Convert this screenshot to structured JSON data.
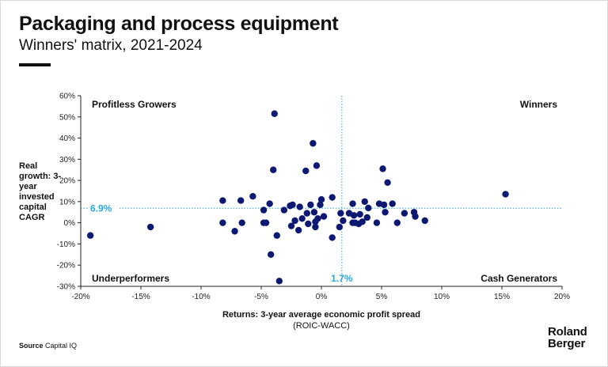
{
  "header": {
    "title": "Packaging and process equipment",
    "subtitle": "Winners' matrix, 2021-2024"
  },
  "footer": {
    "source_label": "Source",
    "source_text": "Capital IQ",
    "logo_line1": "Roland",
    "logo_line2": "Berger"
  },
  "colors": {
    "points": "#0d1873",
    "reference_lines": "#2aa8e0",
    "axis": "#222222"
  },
  "chart_data": {
    "type": "scatter",
    "xlabel": "Returns: 3-year average economic profit spread",
    "xlabel_sub": "(ROIC-WACC)",
    "ylabel": "Real growth: 3-year invested capital CAGR",
    "xlim": [
      -20,
      20
    ],
    "ylim": [
      -30,
      60
    ],
    "x_ticks": [
      -20,
      -15,
      -10,
      -5,
      0,
      5,
      10,
      15,
      20
    ],
    "y_ticks": [
      -30,
      -20,
      -10,
      0,
      10,
      20,
      30,
      40,
      50,
      60
    ],
    "x_tick_labels": [
      "-20%",
      "-15%",
      "-10%",
      "-5%",
      "0%",
      "5%",
      "10%",
      "15%",
      "20%"
    ],
    "y_tick_labels": [
      "-30%",
      "-20%",
      "-10%",
      "0%",
      "10%",
      "20%",
      "30%",
      "40%",
      "50%",
      "60%"
    ],
    "reference_x": 1.7,
    "reference_x_label": "1.7%",
    "reference_y": 6.9,
    "reference_y_label": "6.9%",
    "quadrants": {
      "top_left": "Profitless Growers",
      "top_right": "Winners",
      "bottom_left": "Underperformers",
      "bottom_right": "Cash Generators"
    },
    "grid": false,
    "points": [
      {
        "x": -19.2,
        "y": -6
      },
      {
        "x": -14.2,
        "y": -2
      },
      {
        "x": -8.2,
        "y": 10.5
      },
      {
        "x": -8.2,
        "y": 0
      },
      {
        "x": -7.2,
        "y": -4
      },
      {
        "x": -6.7,
        "y": 10.5
      },
      {
        "x": -6.6,
        "y": 0
      },
      {
        "x": -5.7,
        "y": 12.5
      },
      {
        "x": -4.8,
        "y": 0
      },
      {
        "x": -4.8,
        "y": 6
      },
      {
        "x": -4.6,
        "y": 0
      },
      {
        "x": -4.3,
        "y": 9
      },
      {
        "x": -4.2,
        "y": -15
      },
      {
        "x": -4.0,
        "y": 25
      },
      {
        "x": -3.9,
        "y": 51.5
      },
      {
        "x": -3.7,
        "y": -6
      },
      {
        "x": -3.5,
        "y": -27.5
      },
      {
        "x": -3.1,
        "y": 6
      },
      {
        "x": -2.6,
        "y": 8
      },
      {
        "x": -2.4,
        "y": 8.5
      },
      {
        "x": -2.5,
        "y": -1.5
      },
      {
        "x": -2.2,
        "y": 1
      },
      {
        "x": -1.9,
        "y": -3.5
      },
      {
        "x": -1.8,
        "y": 7.5
      },
      {
        "x": -1.6,
        "y": 2
      },
      {
        "x": -1.3,
        "y": 24.5
      },
      {
        "x": -1.2,
        "y": 4.5
      },
      {
        "x": -1.1,
        "y": -0.5
      },
      {
        "x": -0.9,
        "y": 8.5
      },
      {
        "x": -0.7,
        "y": 37.5
      },
      {
        "x": -0.6,
        "y": 5
      },
      {
        "x": -0.5,
        "y": 0.5
      },
      {
        "x": -0.4,
        "y": 27
      },
      {
        "x": -0.3,
        "y": 2
      },
      {
        "x": -0.5,
        "y": -2
      },
      {
        "x": -0.1,
        "y": 8.5
      },
      {
        "x": 0.0,
        "y": 11
      },
      {
        "x": 0.2,
        "y": 3
      },
      {
        "x": 0.9,
        "y": 12
      },
      {
        "x": 0.9,
        "y": -7
      },
      {
        "x": 1.6,
        "y": 4.5
      },
      {
        "x": 1.5,
        "y": -2
      },
      {
        "x": 1.8,
        "y": 1
      },
      {
        "x": 2.3,
        "y": 4.5
      },
      {
        "x": 2.6,
        "y": 9
      },
      {
        "x": 2.7,
        "y": 3.5
      },
      {
        "x": 2.8,
        "y": 0
      },
      {
        "x": 2.6,
        "y": 0
      },
      {
        "x": 3.1,
        "y": -0.5
      },
      {
        "x": 3.2,
        "y": 4
      },
      {
        "x": 3.4,
        "y": 0.5
      },
      {
        "x": 3.6,
        "y": 10
      },
      {
        "x": 3.9,
        "y": 7
      },
      {
        "x": 3.8,
        "y": 2.5
      },
      {
        "x": 4.6,
        "y": 0
      },
      {
        "x": 4.8,
        "y": 9
      },
      {
        "x": 5.1,
        "y": 25.5
      },
      {
        "x": 5.2,
        "y": 8.5
      },
      {
        "x": 5.3,
        "y": 5
      },
      {
        "x": 5.5,
        "y": 19
      },
      {
        "x": 5.9,
        "y": 9
      },
      {
        "x": 6.3,
        "y": 0
      },
      {
        "x": 6.9,
        "y": 4.5
      },
      {
        "x": 7.7,
        "y": 5
      },
      {
        "x": 7.8,
        "y": 3
      },
      {
        "x": 8.6,
        "y": 1
      },
      {
        "x": 15.3,
        "y": 13.5
      }
    ]
  }
}
